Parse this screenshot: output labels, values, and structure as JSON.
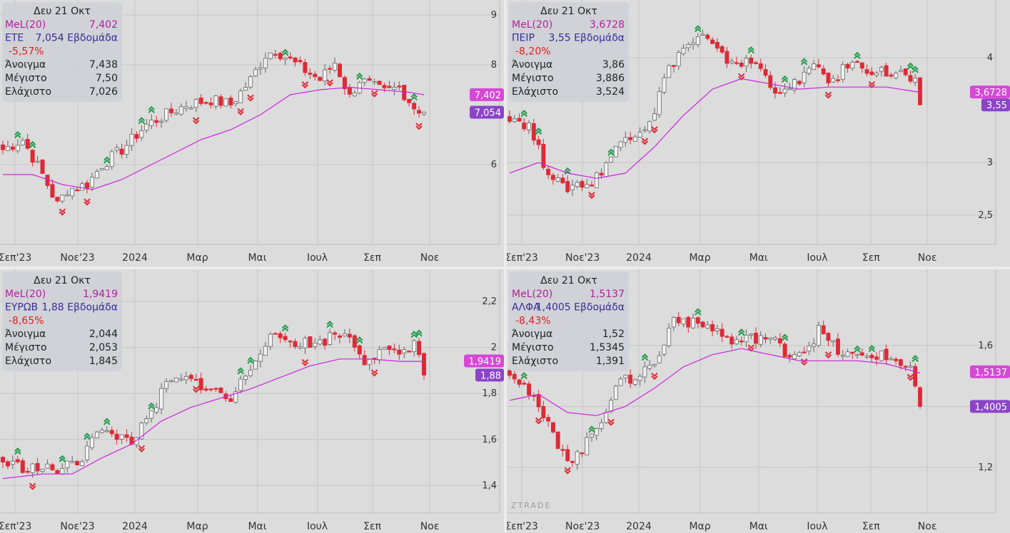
{
  "watermark": "ZTRADE",
  "colors": {
    "background": "#dcdcdc",
    "grid": "#c6c6c6",
    "up_candle_fill": "#f2f2f2",
    "up_candle_border": "#666666",
    "down_candle": "#dd2a36",
    "ma_line": "#cc22dd",
    "info_box": "#cfd0d6",
    "ma_tag": "#d648d6",
    "close_tag": "#8b44c8",
    "arrow_up": "#1e9a4a",
    "arrow_down": "#dd2a36",
    "negative_change": "#e02020"
  },
  "x_ticks": [
    "Σεπ'23",
    "Νοε'23",
    "2024",
    "Μαρ",
    "Μαι",
    "Ιουλ",
    "Σεπ",
    "Νοε"
  ],
  "panels": [
    {
      "date": "Δευ 21 Οκτ",
      "ma_label": "MeL(20)",
      "ma_value": "7,402",
      "symbol": "ΕΤΕ",
      "close_text": "7,054 Εβδομάδα",
      "change": "-5,57%",
      "open_label": "Άνοιγμα",
      "open_value": "7,438",
      "high_label": "Μέγιστο",
      "high_value": "7,50",
      "low_label": "Ελάχιστο",
      "low_value": "7,026",
      "ma_tag": "7,402",
      "close_tag": "7,054",
      "y_ticks": [
        "9",
        "8",
        "6"
      ]
    },
    {
      "date": "Δευ 21 Οκτ",
      "ma_label": "MeL(20)",
      "ma_value": "3,6728",
      "symbol": "ΠΕΙΡ",
      "close_text": "3,55 Εβδομάδα",
      "change": "-8,20%",
      "open_label": "Άνοιγμα",
      "open_value": "3,86",
      "high_label": "Μέγιστο",
      "high_value": "3,886",
      "low_label": "Ελάχιστο",
      "low_value": "3,524",
      "ma_tag": "3,6728",
      "close_tag": "3,55",
      "y_ticks": [
        "4",
        "3",
        "2,5"
      ]
    },
    {
      "date": "Δευ 21 Οκτ",
      "ma_label": "MeL(20)",
      "ma_value": "1,9419",
      "symbol": "ΕΥΡΩΒ",
      "close_text": "1,88 Εβδομάδα",
      "change": "-8,65%",
      "open_label": "Άνοιγμα",
      "open_value": "2,044",
      "high_label": "Μέγιστο",
      "high_value": "2,053",
      "low_label": "Ελάχιστο",
      "low_value": "1,845",
      "ma_tag": "1,9419",
      "close_tag": "1,88",
      "y_ticks": [
        "2,2",
        "2",
        "1,8",
        "1,6",
        "1,4"
      ]
    },
    {
      "date": "Δευ 21 Οκτ",
      "ma_label": "MeL(20)",
      "ma_value": "1,5137",
      "symbol": "ΑΛΦΑ",
      "close_text": "1,4005 Εβδομάδα",
      "change": "-8,43%",
      "open_label": "Άνοιγμα",
      "open_value": "1,52",
      "high_label": "Μέγιστο",
      "high_value": "1,5345",
      "low_label": "Ελάχιστο",
      "low_value": "1,391",
      "ma_tag": "1,5137",
      "close_tag": "1,4005",
      "y_ticks": [
        "1,6",
        "1,4",
        "1,2"
      ]
    }
  ],
  "chart_data": [
    {
      "type": "candlestick",
      "symbol": "ΕΤΕ",
      "ylim": [
        4.4,
        9.3
      ],
      "y_ticks": [
        9,
        8,
        6
      ],
      "ma_last": 7.402,
      "anchors": [
        [
          0,
          6.3
        ],
        [
          4,
          6.5
        ],
        [
          8,
          5.8
        ],
        [
          11,
          5.2
        ],
        [
          13,
          5.5
        ],
        [
          17,
          5.6
        ],
        [
          20,
          6.0
        ],
        [
          24,
          6.3
        ],
        [
          29,
          6.8
        ],
        [
          33,
          7.0
        ],
        [
          37,
          7.2
        ],
        [
          42,
          7.3
        ],
        [
          46,
          7.2
        ],
        [
          50,
          7.7
        ],
        [
          53,
          8.2
        ],
        [
          55,
          8.3
        ],
        [
          60,
          7.95
        ],
        [
          64,
          7.7
        ],
        [
          67,
          8.05
        ],
        [
          70,
          7.35
        ],
        [
          72,
          7.7
        ],
        [
          77,
          7.45
        ],
        [
          80,
          7.55
        ],
        [
          83,
          7.15
        ],
        [
          85,
          7.05
        ]
      ],
      "ma_anchors": [
        [
          0,
          5.8
        ],
        [
          6,
          5.8
        ],
        [
          12,
          5.6
        ],
        [
          18,
          5.5
        ],
        [
          24,
          5.7
        ],
        [
          32,
          6.1
        ],
        [
          40,
          6.5
        ],
        [
          46,
          6.7
        ],
        [
          52,
          7.0
        ],
        [
          58,
          7.4
        ],
        [
          64,
          7.5
        ],
        [
          70,
          7.55
        ],
        [
          76,
          7.5
        ],
        [
          82,
          7.45
        ],
        [
          85,
          7.4
        ]
      ],
      "x_ticks": [
        "Σεπ'23",
        "Νοε'23",
        "2024",
        "Μαρ",
        "Μαι",
        "Ιουλ",
        "Σεπ",
        "Νοε"
      ]
    },
    {
      "type": "candlestick",
      "symbol": "ΠΕΙΡ",
      "ylim": [
        2.22,
        4.55
      ],
      "y_ticks": [
        4,
        3,
        2.5
      ],
      "ma_last": 3.6728,
      "anchors": [
        [
          0,
          3.45
        ],
        [
          4,
          3.35
        ],
        [
          7,
          3.0
        ],
        [
          11,
          2.75
        ],
        [
          14,
          2.8
        ],
        [
          17,
          2.8
        ],
        [
          20,
          3.0
        ],
        [
          24,
          3.25
        ],
        [
          28,
          3.35
        ],
        [
          30,
          3.5
        ],
        [
          32,
          3.8
        ],
        [
          35,
          4.05
        ],
        [
          38,
          4.15
        ],
        [
          40,
          4.2
        ],
        [
          44,
          4.0
        ],
        [
          48,
          3.95
        ],
        [
          51,
          3.95
        ],
        [
          54,
          3.75
        ],
        [
          57,
          3.65
        ],
        [
          61,
          3.85
        ],
        [
          64,
          3.9
        ],
        [
          67,
          3.75
        ],
        [
          70,
          3.95
        ],
        [
          74,
          3.9
        ],
        [
          78,
          3.85
        ],
        [
          81,
          3.85
        ],
        [
          84,
          3.75
        ],
        [
          85,
          3.55
        ]
      ],
      "ma_anchors": [
        [
          0,
          2.9
        ],
        [
          6,
          3.0
        ],
        [
          12,
          2.9
        ],
        [
          18,
          2.85
        ],
        [
          24,
          2.9
        ],
        [
          30,
          3.15
        ],
        [
          36,
          3.45
        ],
        [
          42,
          3.7
        ],
        [
          48,
          3.8
        ],
        [
          54,
          3.75
        ],
        [
          60,
          3.7
        ],
        [
          66,
          3.72
        ],
        [
          72,
          3.72
        ],
        [
          78,
          3.72
        ],
        [
          85,
          3.67
        ]
      ],
      "x_ticks": [
        "Σεπ'23",
        "Νοε'23",
        "2024",
        "Μαρ",
        "Μαι",
        "Ιουλ",
        "Σεπ",
        "Νοε"
      ]
    },
    {
      "type": "candlestick",
      "symbol": "ΕΥΡΩΒ",
      "ylim": [
        1.28,
        2.34
      ],
      "y_ticks": [
        2.2,
        2.0,
        1.8,
        1.6,
        1.4
      ],
      "ma_last": 1.9419,
      "anchors": [
        [
          0,
          1.5
        ],
        [
          4,
          1.48
        ],
        [
          9,
          1.47
        ],
        [
          12,
          1.47
        ],
        [
          16,
          1.52
        ],
        [
          18,
          1.63
        ],
        [
          22,
          1.62
        ],
        [
          26,
          1.6
        ],
        [
          29,
          1.67
        ],
        [
          33,
          1.84
        ],
        [
          36,
          1.86
        ],
        [
          39,
          1.85
        ],
        [
          42,
          1.82
        ],
        [
          46,
          1.77
        ],
        [
          50,
          1.92
        ],
        [
          53,
          2.03
        ],
        [
          56,
          2.04
        ],
        [
          60,
          2.02
        ],
        [
          64,
          2.02
        ],
        [
          67,
          2.06
        ],
        [
          70,
          2.05
        ],
        [
          73,
          1.95
        ],
        [
          76,
          1.98
        ],
        [
          80,
          1.97
        ],
        [
          83,
          2.03
        ],
        [
          85,
          1.88
        ]
      ],
      "ma_anchors": [
        [
          0,
          1.43
        ],
        [
          8,
          1.45
        ],
        [
          14,
          1.45
        ],
        [
          20,
          1.52
        ],
        [
          26,
          1.58
        ],
        [
          32,
          1.68
        ],
        [
          38,
          1.74
        ],
        [
          44,
          1.78
        ],
        [
          50,
          1.82
        ],
        [
          56,
          1.87
        ],
        [
          62,
          1.92
        ],
        [
          68,
          1.95
        ],
        [
          74,
          1.95
        ],
        [
          80,
          1.94
        ],
        [
          85,
          1.94
        ]
      ],
      "x_ticks": [
        "Σεπ'23",
        "Νοε'23",
        "2024",
        "Μαρ",
        "Μαι",
        "Ιουλ",
        "Σεπ",
        "Νοε"
      ]
    },
    {
      "type": "candlestick",
      "symbol": "ΑΛΦΑ",
      "ylim": [
        1.05,
        1.85
      ],
      "y_ticks": [
        1.6,
        1.4,
        1.2
      ],
      "ma_last": 1.5137,
      "anchors": [
        [
          0,
          1.52
        ],
        [
          3,
          1.47
        ],
        [
          6,
          1.39
        ],
        [
          10,
          1.28
        ],
        [
          13,
          1.22
        ],
        [
          16,
          1.28
        ],
        [
          19,
          1.36
        ],
        [
          22,
          1.47
        ],
        [
          25,
          1.49
        ],
        [
          28,
          1.52
        ],
        [
          31,
          1.56
        ],
        [
          34,
          1.7
        ],
        [
          38,
          1.67
        ],
        [
          42,
          1.66
        ],
        [
          46,
          1.61
        ],
        [
          49,
          1.62
        ],
        [
          52,
          1.63
        ],
        [
          55,
          1.61
        ],
        [
          58,
          1.57
        ],
        [
          62,
          1.6
        ],
        [
          64,
          1.65
        ],
        [
          68,
          1.58
        ],
        [
          72,
          1.56
        ],
        [
          76,
          1.57
        ],
        [
          80,
          1.55
        ],
        [
          83,
          1.53
        ],
        [
          85,
          1.4
        ]
      ],
      "ma_anchors": [
        [
          0,
          1.42
        ],
        [
          6,
          1.44
        ],
        [
          12,
          1.38
        ],
        [
          18,
          1.37
        ],
        [
          24,
          1.4
        ],
        [
          30,
          1.46
        ],
        [
          36,
          1.53
        ],
        [
          42,
          1.57
        ],
        [
          48,
          1.59
        ],
        [
          54,
          1.57
        ],
        [
          60,
          1.55
        ],
        [
          66,
          1.55
        ],
        [
          72,
          1.55
        ],
        [
          78,
          1.54
        ],
        [
          85,
          1.51
        ]
      ],
      "x_ticks": [
        "Σεπ'23",
        "Νοε'23",
        "2024",
        "Μαρ",
        "Μαι",
        "Ιουλ",
        "Σεπ",
        "Νοε"
      ]
    }
  ]
}
